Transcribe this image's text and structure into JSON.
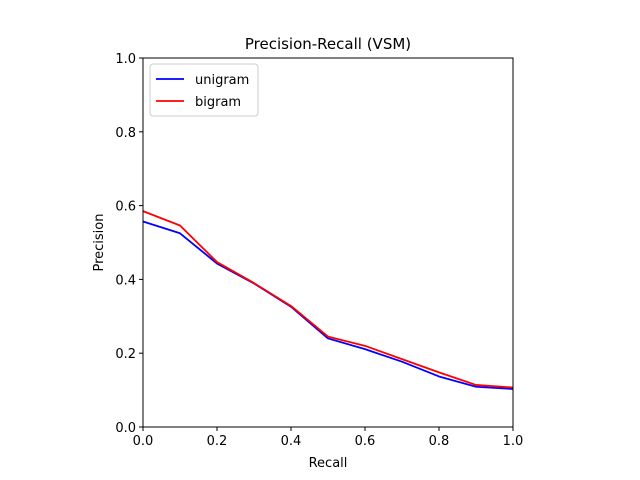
{
  "chart_data": {
    "type": "line",
    "title": "Precision-Recall (VSM)",
    "xlabel": "Recall",
    "ylabel": "Precision",
    "xlim": [
      0.0,
      1.0
    ],
    "ylim": [
      0.0,
      1.0
    ],
    "xticks": [
      "0.0",
      "0.2",
      "0.4",
      "0.6",
      "0.8",
      "1.0"
    ],
    "yticks": [
      "0.0",
      "0.2",
      "0.4",
      "0.6",
      "0.8",
      "1.0"
    ],
    "grid": false,
    "legend_position": "top-left",
    "x": [
      0.0,
      0.1,
      0.2,
      0.3,
      0.4,
      0.5,
      0.6,
      0.7,
      0.8,
      0.9,
      1.0
    ],
    "series": [
      {
        "name": "unigram",
        "color": "#0000ff",
        "values": [
          0.557,
          0.525,
          0.443,
          0.389,
          0.326,
          0.24,
          0.211,
          0.177,
          0.137,
          0.109,
          0.103
        ]
      },
      {
        "name": "bigram",
        "color": "#ff0000",
        "values": [
          0.585,
          0.546,
          0.447,
          0.39,
          0.328,
          0.245,
          0.22,
          0.184,
          0.148,
          0.114,
          0.107
        ]
      }
    ]
  }
}
